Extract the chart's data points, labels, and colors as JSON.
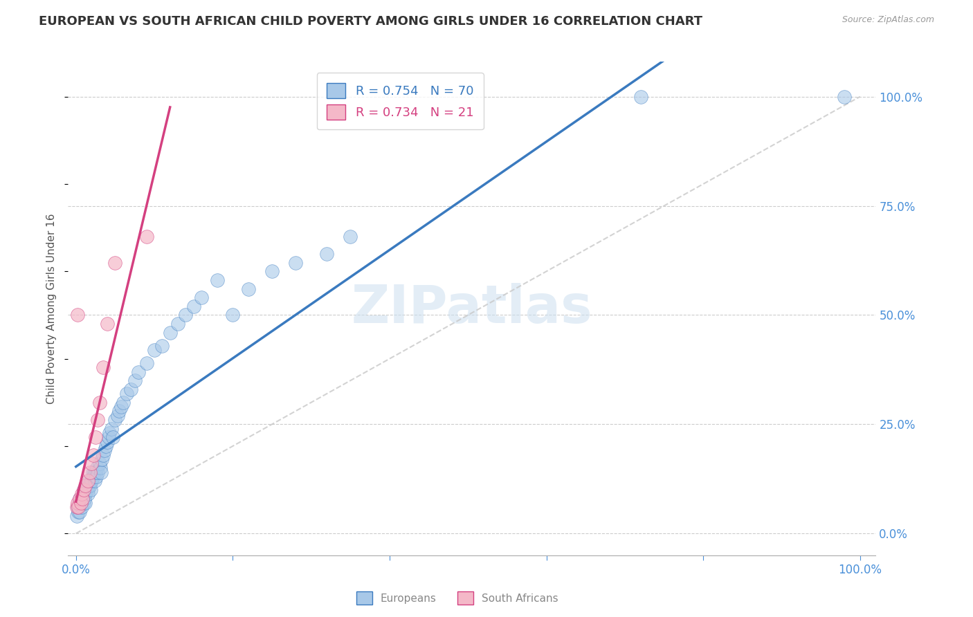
{
  "title": "EUROPEAN VS SOUTH AFRICAN CHILD POVERTY AMONG GIRLS UNDER 16 CORRELATION CHART",
  "source": "Source: ZipAtlas.com",
  "ylabel": "Child Poverty Among Girls Under 16",
  "watermark": "ZIPatlas",
  "blue_R": 0.754,
  "blue_N": 70,
  "pink_R": 0.734,
  "pink_N": 21,
  "blue_color": "#a8c8e8",
  "pink_color": "#f4b8c8",
  "blue_line_color": "#3a7abf",
  "pink_line_color": "#d44080",
  "ref_line_color": "#c8c8c8",
  "grid_color": "#cccccc",
  "axis_color": "#4a90d9",
  "title_color": "#333333",
  "blue_scatter_x": [
    0.001,
    0.002,
    0.003,
    0.004,
    0.005,
    0.005,
    0.006,
    0.007,
    0.008,
    0.009,
    0.01,
    0.01,
    0.011,
    0.012,
    0.012,
    0.013,
    0.014,
    0.015,
    0.015,
    0.016,
    0.017,
    0.018,
    0.019,
    0.02,
    0.021,
    0.022,
    0.023,
    0.024,
    0.025,
    0.026,
    0.027,
    0.028,
    0.03,
    0.031,
    0.032,
    0.033,
    0.035,
    0.036,
    0.038,
    0.04,
    0.042,
    0.043,
    0.045,
    0.047,
    0.05,
    0.053,
    0.055,
    0.058,
    0.06,
    0.065,
    0.07,
    0.075,
    0.08,
    0.09,
    0.1,
    0.11,
    0.12,
    0.13,
    0.14,
    0.15,
    0.16,
    0.18,
    0.2,
    0.22,
    0.25,
    0.28,
    0.32,
    0.35,
    0.72,
    0.98
  ],
  "blue_scatter_y": [
    0.04,
    0.06,
    0.05,
    0.07,
    0.08,
    0.05,
    0.07,
    0.06,
    0.08,
    0.09,
    0.1,
    0.07,
    0.08,
    0.09,
    0.07,
    0.1,
    0.11,
    0.1,
    0.09,
    0.11,
    0.12,
    0.11,
    0.1,
    0.12,
    0.14,
    0.13,
    0.14,
    0.12,
    0.14,
    0.13,
    0.15,
    0.14,
    0.16,
    0.15,
    0.14,
    0.17,
    0.18,
    0.19,
    0.2,
    0.21,
    0.22,
    0.23,
    0.24,
    0.22,
    0.26,
    0.27,
    0.28,
    0.29,
    0.3,
    0.32,
    0.33,
    0.35,
    0.37,
    0.39,
    0.42,
    0.43,
    0.46,
    0.48,
    0.5,
    0.52,
    0.54,
    0.58,
    0.5,
    0.56,
    0.6,
    0.62,
    0.64,
    0.68,
    1.0,
    1.0
  ],
  "pink_scatter_x": [
    0.001,
    0.002,
    0.003,
    0.005,
    0.006,
    0.007,
    0.008,
    0.01,
    0.012,
    0.015,
    0.018,
    0.02,
    0.022,
    0.025,
    0.028,
    0.03,
    0.035,
    0.04,
    0.05,
    0.09,
    0.002
  ],
  "pink_scatter_y": [
    0.06,
    0.07,
    0.06,
    0.08,
    0.07,
    0.09,
    0.08,
    0.1,
    0.11,
    0.12,
    0.14,
    0.16,
    0.18,
    0.22,
    0.26,
    0.3,
    0.38,
    0.48,
    0.62,
    0.68,
    0.5
  ]
}
